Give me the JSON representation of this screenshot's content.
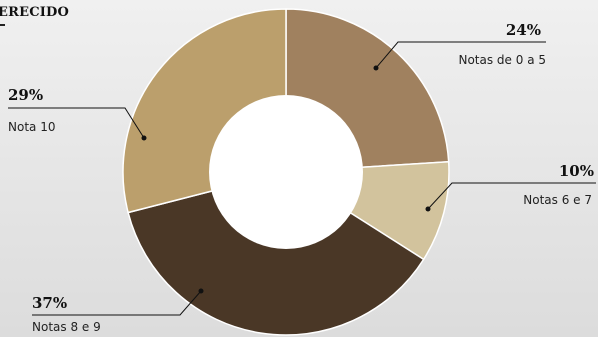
{
  "title_fragment": "ERECIDO",
  "chart_data": {
    "type": "pie",
    "donut": true,
    "slices": [
      {
        "label": "Notas de 0 a 5",
        "value_label": "24%",
        "value": 24,
        "color": "#a0815f"
      },
      {
        "label": "Notas 6 e 7",
        "value_label": "10%",
        "value": 10,
        "color": "#d2c39d"
      },
      {
        "label": "Notas 8 e 9",
        "value_label": "37%",
        "value": 37,
        "color": "#4a3726"
      },
      {
        "label": "Nota 10",
        "value_label": "29%",
        "value": 29,
        "color": "#bb9f6c"
      }
    ],
    "legend": "none"
  }
}
